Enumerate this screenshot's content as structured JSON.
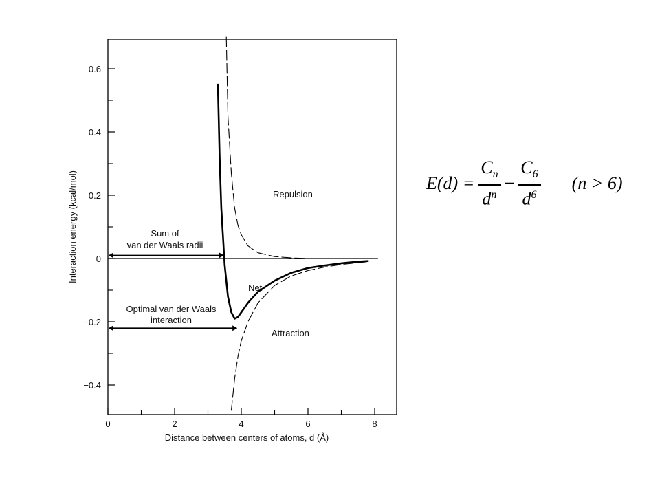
{
  "chart_data": {
    "type": "line",
    "xlabel": "Distance between centers of atoms, d (Å)",
    "ylabel": "Interaction energy (kcal/mol)",
    "xlim": [
      0,
      8.5
    ],
    "ylim": [
      -0.48,
      0.7
    ],
    "x_ticks": [
      "0",
      "2",
      "4",
      "6",
      "8"
    ],
    "y_ticks": [
      "0.6",
      "0.4",
      "0.2",
      "0",
      "−0.2",
      "−0.4"
    ],
    "grid": false,
    "series": [
      {
        "name": "Net",
        "style": "solid-bold",
        "x": [
          3.3,
          3.35,
          3.4,
          3.5,
          3.6,
          3.7,
          3.8,
          3.9,
          4.0,
          4.2,
          4.5,
          5.0,
          5.5,
          6.0,
          6.5,
          7.0,
          7.5,
          7.8
        ],
        "y": [
          0.55,
          0.32,
          0.16,
          -0.02,
          -0.12,
          -0.17,
          -0.19,
          -0.185,
          -0.17,
          -0.14,
          -0.105,
          -0.07,
          -0.045,
          -0.03,
          -0.022,
          -0.015,
          -0.01,
          -0.008
        ]
      },
      {
        "name": "Repulsion",
        "style": "dashed",
        "x": [
          3.55,
          3.6,
          3.7,
          3.8,
          3.9,
          4.0,
          4.2,
          4.5,
          5.0,
          5.5,
          6.0
        ],
        "y": [
          0.7,
          0.45,
          0.27,
          0.16,
          0.105,
          0.075,
          0.04,
          0.018,
          0.006,
          0.002,
          0.0
        ]
      },
      {
        "name": "Attraction",
        "style": "dashed",
        "x": [
          3.7,
          3.8,
          3.9,
          4.0,
          4.2,
          4.5,
          5.0,
          5.5,
          6.0,
          6.5,
          7.0,
          7.8
        ],
        "y": [
          -0.48,
          -0.38,
          -0.31,
          -0.26,
          -0.2,
          -0.14,
          -0.085,
          -0.055,
          -0.038,
          -0.027,
          -0.019,
          -0.01
        ]
      }
    ],
    "annotations": {
      "repulsion": "Repulsion",
      "net": "Net",
      "attraction": "Attraction",
      "sum_radii_line1": "Sum of",
      "sum_radii_line2": "van der Waals radii",
      "sum_radii_x": 3.5,
      "optimal_line1": "Optimal van der Waals",
      "optimal_line2": "interaction",
      "optimal_x": 3.9
    }
  },
  "equation": {
    "lhs": "E(d) =",
    "num1_base": "C",
    "num1_sub": "n",
    "den1_base": "d",
    "den1_sup": "n",
    "minus": "−",
    "num2_base": "C",
    "num2_sub": "6",
    "den2_base": "d",
    "den2_sup": "6",
    "condition": "(n > 6)"
  }
}
